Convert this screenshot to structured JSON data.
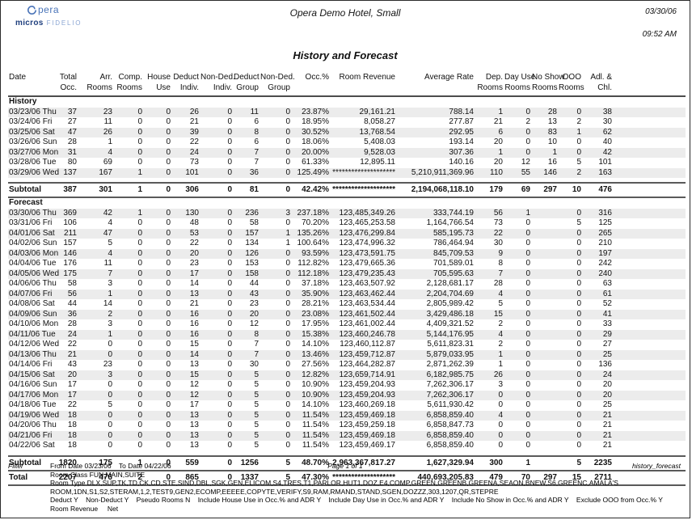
{
  "header": {
    "brand": {
      "opera": "pera",
      "micros": "micros",
      "fidelio": "FIDELIO"
    },
    "hotel_title": "Opera Demo Hotel, Small",
    "date": "03/30/06",
    "time": "09:52 AM",
    "report_title": "History and Forecast"
  },
  "colors": {
    "logo_blue": "#4a74b8",
    "logo_dark_blue": "#1f3f7e",
    "logo_light_blue": "#8aa5d3",
    "stripe": "#ececec",
    "rule": "#5a5a5a"
  },
  "table": {
    "columns": [
      {
        "key": "date",
        "l1": "Date",
        "l2": ""
      },
      {
        "key": "total_occ",
        "l1": "Total",
        "l2": "Occ."
      },
      {
        "key": "arr_rooms",
        "l1": "Arr.",
        "l2": "Rooms"
      },
      {
        "key": "comp_rooms",
        "l1": "Comp.",
        "l2": "Rooms"
      },
      {
        "key": "house_use",
        "l1": "House",
        "l2": "Use"
      },
      {
        "key": "deduct_indiv",
        "l1": "Deduct",
        "l2": "Indiv."
      },
      {
        "key": "non_ded_indiv",
        "l1": "Non-Ded.",
        "l2": "Indiv."
      },
      {
        "key": "deduct_group",
        "l1": "Deduct",
        "l2": "Group"
      },
      {
        "key": "non_ded_group",
        "l1": "Non-Ded.",
        "l2": "Group"
      },
      {
        "key": "occ_pct",
        "l1": "Occ.%",
        "l2": ""
      },
      {
        "key": "room_revenue",
        "l1": "Room Revenue",
        "l2": ""
      },
      {
        "key": "average_rate",
        "l1": "Average Rate",
        "l2": ""
      },
      {
        "key": "dep_rooms",
        "l1": "Dep.",
        "l2": "Rooms"
      },
      {
        "key": "day_use_rooms",
        "l1": "Day Use",
        "l2": "Rooms"
      },
      {
        "key": "no_show_rooms",
        "l1": "No Show",
        "l2": "Rooms"
      },
      {
        "key": "ooo_rooms",
        "l1": "OOO",
        "l2": "Rooms"
      },
      {
        "key": "adl_chl",
        "l1": "Adl. &",
        "l2": "Chl."
      }
    ],
    "history_label": "History",
    "forecast_label": "Forecast",
    "subtotal_label": "Subtotal",
    "total_label": "Total",
    "history_rows": [
      [
        "03/23/06 Thu",
        "37",
        "23",
        "0",
        "0",
        "26",
        "0",
        "11",
        "0",
        "23.87%",
        "29,161.21",
        "788.14",
        "1",
        "0",
        "28",
        "0",
        "38"
      ],
      [
        "03/24/06 Fri",
        "27",
        "11",
        "0",
        "0",
        "21",
        "0",
        "6",
        "0",
        "18.95%",
        "8,058.27",
        "277.87",
        "21",
        "2",
        "13",
        "2",
        "30"
      ],
      [
        "03/25/06 Sat",
        "47",
        "26",
        "0",
        "0",
        "39",
        "0",
        "8",
        "0",
        "30.52%",
        "13,768.54",
        "292.95",
        "6",
        "0",
        "83",
        "1",
        "62"
      ],
      [
        "03/26/06 Sun",
        "28",
        "1",
        "0",
        "0",
        "22",
        "0",
        "6",
        "0",
        "18.06%",
        "5,408.03",
        "193.14",
        "20",
        "0",
        "10",
        "0",
        "40"
      ],
      [
        "03/27/06 Mon",
        "31",
        "4",
        "0",
        "0",
        "24",
        "0",
        "7",
        "0",
        "20.00%",
        "9,528.03",
        "307.36",
        "1",
        "0",
        "1",
        "0",
        "42"
      ],
      [
        "03/28/06 Tue",
        "80",
        "69",
        "0",
        "0",
        "73",
        "0",
        "7",
        "0",
        "61.33%",
        "12,895.11",
        "140.16",
        "20",
        "12",
        "16",
        "5",
        "101"
      ],
      [
        "03/29/06 Wed",
        "137",
        "167",
        "1",
        "0",
        "101",
        "0",
        "36",
        "0",
        "125.49%",
        "********************",
        "5,210,911,369.96",
        "110",
        "55",
        "146",
        "2",
        "163"
      ]
    ],
    "history_subtotal": [
      "Subtotal",
      "387",
      "301",
      "1",
      "0",
      "306",
      "0",
      "81",
      "0",
      "42.42%",
      "********************",
      "2,194,068,118.10",
      "179",
      "69",
      "297",
      "10",
      "476"
    ],
    "forecast_rows": [
      [
        "03/30/06 Thu",
        "369",
        "42",
        "1",
        "0",
        "130",
        "0",
        "236",
        "3",
        "237.18%",
        "123,485,349.26",
        "333,744.19",
        "56",
        "1",
        "",
        "0",
        "316"
      ],
      [
        "03/31/06 Fri",
        "106",
        "4",
        "0",
        "0",
        "48",
        "0",
        "58",
        "0",
        "70.20%",
        "123,465,253.58",
        "1,164,766.54",
        "73",
        "0",
        "",
        "5",
        "125"
      ],
      [
        "04/01/06 Sat",
        "211",
        "47",
        "0",
        "0",
        "53",
        "0",
        "157",
        "1",
        "135.26%",
        "123,476,299.84",
        "585,195.73",
        "22",
        "0",
        "",
        "0",
        "265"
      ],
      [
        "04/02/06 Sun",
        "157",
        "5",
        "0",
        "0",
        "22",
        "0",
        "134",
        "1",
        "100.64%",
        "123,474,996.32",
        "786,464.94",
        "30",
        "0",
        "",
        "0",
        "210"
      ],
      [
        "04/03/06 Mon",
        "146",
        "4",
        "0",
        "0",
        "20",
        "0",
        "126",
        "0",
        "93.59%",
        "123,473,591.75",
        "845,709.53",
        "9",
        "0",
        "",
        "0",
        "197"
      ],
      [
        "04/04/06 Tue",
        "176",
        "11",
        "0",
        "0",
        "23",
        "0",
        "153",
        "0",
        "112.82%",
        "123,479,665.36",
        "701,589.01",
        "8",
        "0",
        "",
        "0",
        "242"
      ],
      [
        "04/05/06 Wed",
        "175",
        "7",
        "0",
        "0",
        "17",
        "0",
        "158",
        "0",
        "112.18%",
        "123,479,235.43",
        "705,595.63",
        "7",
        "0",
        "",
        "0",
        "240"
      ],
      [
        "04/06/06 Thu",
        "58",
        "3",
        "0",
        "0",
        "14",
        "0",
        "44",
        "0",
        "37.18%",
        "123,463,507.92",
        "2,128,681.17",
        "28",
        "0",
        "",
        "0",
        "63"
      ],
      [
        "04/07/06 Fri",
        "56",
        "1",
        "0",
        "0",
        "13",
        "0",
        "43",
        "0",
        "35.90%",
        "123,463,462.44",
        "2,204,704.69",
        "4",
        "0",
        "",
        "0",
        "61"
      ],
      [
        "04/08/06 Sat",
        "44",
        "14",
        "0",
        "0",
        "21",
        "0",
        "23",
        "0",
        "28.21%",
        "123,463,534.44",
        "2,805,989.42",
        "5",
        "0",
        "",
        "0",
        "52"
      ],
      [
        "04/09/06 Sun",
        "36",
        "2",
        "0",
        "0",
        "16",
        "0",
        "20",
        "0",
        "23.08%",
        "123,461,502.44",
        "3,429,486.18",
        "15",
        "0",
        "",
        "0",
        "41"
      ],
      [
        "04/10/06 Mon",
        "28",
        "3",
        "0",
        "0",
        "16",
        "0",
        "12",
        "0",
        "17.95%",
        "123,461,002.44",
        "4,409,321.52",
        "2",
        "0",
        "",
        "0",
        "33"
      ],
      [
        "04/11/06 Tue",
        "24",
        "1",
        "0",
        "0",
        "16",
        "0",
        "8",
        "0",
        "15.38%",
        "123,460,246.78",
        "5,144,176.95",
        "4",
        "0",
        "",
        "0",
        "29"
      ],
      [
        "04/12/06 Wed",
        "22",
        "0",
        "0",
        "0",
        "15",
        "0",
        "7",
        "0",
        "14.10%",
        "123,460,112.87",
        "5,611,823.31",
        "2",
        "0",
        "",
        "0",
        "27"
      ],
      [
        "04/13/06 Thu",
        "21",
        "0",
        "0",
        "0",
        "14",
        "0",
        "7",
        "0",
        "13.46%",
        "123,459,712.87",
        "5,879,033.95",
        "1",
        "0",
        "",
        "0",
        "25"
      ],
      [
        "04/14/06 Fri",
        "43",
        "23",
        "0",
        "0",
        "13",
        "0",
        "30",
        "0",
        "27.56%",
        "123,464,282.87",
        "2,871,262.39",
        "1",
        "0",
        "",
        "0",
        "136"
      ],
      [
        "04/15/06 Sat",
        "20",
        "3",
        "0",
        "0",
        "15",
        "0",
        "5",
        "0",
        "12.82%",
        "123,659,714.91",
        "6,182,985.75",
        "26",
        "0",
        "",
        "0",
        "24"
      ],
      [
        "04/16/06 Sun",
        "17",
        "0",
        "0",
        "0",
        "12",
        "0",
        "5",
        "0",
        "10.90%",
        "123,459,204.93",
        "7,262,306.17",
        "3",
        "0",
        "",
        "0",
        "20"
      ],
      [
        "04/17/06 Mon",
        "17",
        "0",
        "0",
        "0",
        "12",
        "0",
        "5",
        "0",
        "10.90%",
        "123,459,204.93",
        "7,262,306.17",
        "0",
        "0",
        "",
        "0",
        "20"
      ],
      [
        "04/18/06 Tue",
        "22",
        "5",
        "0",
        "0",
        "17",
        "0",
        "5",
        "0",
        "14.10%",
        "123,460,269.18",
        "5,611,930.42",
        "0",
        "0",
        "",
        "0",
        "25"
      ],
      [
        "04/19/06 Wed",
        "18",
        "0",
        "0",
        "0",
        "13",
        "0",
        "5",
        "0",
        "11.54%",
        "123,459,469.18",
        "6,858,859.40",
        "4",
        "0",
        "",
        "0",
        "21"
      ],
      [
        "04/20/06 Thu",
        "18",
        "0",
        "0",
        "0",
        "13",
        "0",
        "5",
        "0",
        "11.54%",
        "123,459,259.18",
        "6,858,847.73",
        "0",
        "0",
        "",
        "0",
        "21"
      ],
      [
        "04/21/06 Fri",
        "18",
        "0",
        "0",
        "0",
        "13",
        "0",
        "5",
        "0",
        "11.54%",
        "123,459,469.18",
        "6,858,859.40",
        "0",
        "0",
        "",
        "0",
        "21"
      ],
      [
        "04/22/06 Sat",
        "18",
        "0",
        "0",
        "0",
        "13",
        "0",
        "5",
        "0",
        "11.54%",
        "123,459,469.17",
        "6,858,859.40",
        "0",
        "0",
        "",
        "0",
        "21"
      ]
    ],
    "forecast_subtotal": [
      "Subtotal",
      "1820",
      "175",
      "1",
      "0",
      "559",
      "0",
      "1256",
      "5",
      "48.70%",
      "2,963,367,817.27",
      "1,627,329.94",
      "300",
      "1",
      "",
      "5",
      "2235"
    ],
    "total_row": [
      "Total",
      "2207",
      "476",
      "2",
      "0",
      "865",
      "0",
      "1337",
      "5",
      "47.30%",
      "********************",
      "440,693,205.83",
      "479",
      "70",
      "297",
      "15",
      "2711"
    ]
  },
  "footer": {
    "filter_label": "Filter",
    "date_range": "From Date 03/23/06    To Date 04/22/06",
    "page_number": "Page 1 of 1",
    "report_filename": "history_forecast",
    "room_class": "Room Class FUN,MAIN,SUITE",
    "room_type_1": "Room Type DLX,SUP,TK,TD,CK,CD,STE,SIND,DBL,SGK,GEN,ELICOM,S4,TRES,T1,PARLOR,HUT1,DOZ,E4,COMP,GREEN,GREENB,GREENA,SEAON,BNEW,S6,GREENC,AMALA'S",
    "room_type_2": "ROOM,1DN,S1,S2,STERAM,1,2,TEST9,GEN2,ECOMP,EEEEE,COPYTE,VERIFY,S9,RAM,RMAND,STAND,SGEN,DOZZZ,303,1207,QR,STEPRE",
    "options_line": "Deduct Y    Non-Deduct Y    Pseudo Rooms N    Include House Use in Occ.% and ADR Y    Include Day Use in Occ.% and ADR Y    Include No Show in Occ.% and ADR Y    Exclude OOO from Occ.% Y",
    "revenue_line": "Room Revenue     Net"
  }
}
